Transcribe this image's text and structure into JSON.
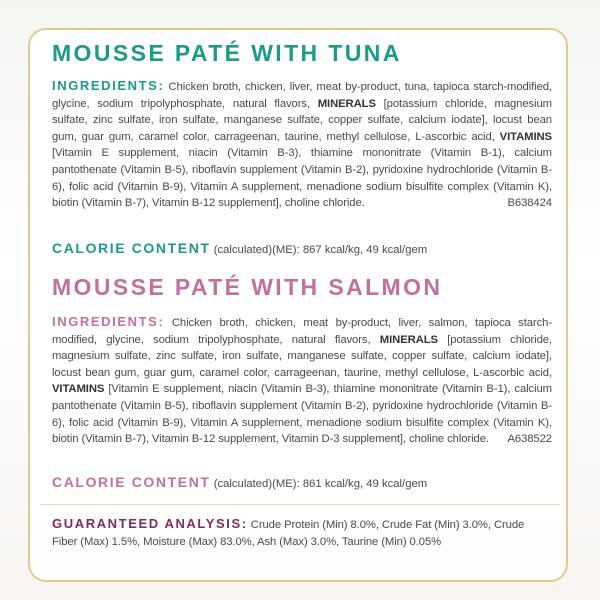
{
  "tuna": {
    "title": "MOUSSE PATÉ WITH TUNA",
    "ingredients_label": "INGREDIENTS:",
    "text_before": "Chicken broth, chicken, liver, meat by-product, tuna, tapioca starch-modified, glycine, sodium tripolyphosphate, natural flavors, ",
    "minerals_label": "MINERALS",
    "text_middle": " [potassium chloride, magnesium sulfate, zinc sulfate, iron sulfate, manganese sulfate, copper sulfate, calcium iodate], locust bean gum, guar gum, caramel color, carrageenan, taurine, methyl cellulose, L-ascorbic acid, ",
    "vitamins_label": "VITAMINS",
    "text_after": " [Vitamin E supplement, niacin (Vitamin B-3), thiamine mononitrate (Vitamin B-1), calcium pantothenate (Vitamin B-5), riboflavin supplement (Vitamin B-2), pyridoxine hydrochloride (Vitamin B-6), folic acid (Vitamin B-9), Vitamin A supplement, menadione sodium bisulfite complex (Vitamin K), biotin (Vitamin B-7), Vitamin B-12 supplement], choline chloride.",
    "code": "B638424",
    "calorie_label": "CALORIE CONTENT",
    "calorie_text": "(calculated)(ME): 867 kcal/kg, 49 kcal/gem"
  },
  "salmon": {
    "title": "MOUSSE PATÉ WITH SALMON",
    "ingredients_label": "INGREDIENTS:",
    "text_before": "Chicken broth, chicken, meat by-product, liver, salmon, tapioca starch-modified, glycine, sodium tripolyphosphate, natural flavors, ",
    "minerals_label": "MINERALS",
    "text_middle": " [potassium chloride, magnesium sulfate, zinc sulfate, iron sulfate, manganese sulfate, copper sulfate, calcium iodate], locust bean gum, guar gum, caramel color, carrageenan, taurine, methyl cellulose, L-ascorbic acid, ",
    "vitamins_label": "VITAMINS",
    "text_after": " [Vitamin E supplement, niacin (Vitamin B-3), thiamine mononitrate (Vitamin B-1), calcium pantothenate (Vitamin B-5), riboflavin supplement (Vitamin B-2), pyridoxine hydrochloride (Vitamin B-6), folic acid (Vitamin B-9), Vitamin A supplement, menadione sodium bisulfite complex (Vitamin K), biotin (Vitamin B-7), Vitamin B-12 supplement, Vitamin D-3 supplement], choline chloride.",
    "code": "A638522",
    "calorie_label": "CALORIE CONTENT",
    "calorie_text": "(calculated)(ME): 861 kcal/kg, 49 kcal/gem"
  },
  "guaranteed_analysis": {
    "label": "GUARANTEED ANALYSIS:",
    "text": "Crude Protein (Min) 8.0%, Crude Fat (Min) 3.0%, Crude Fiber (Max) 1.5%, Moisture (Max) 83.0%, Ash (Max) 3.0%, Taurine (Min) 0.05%"
  }
}
